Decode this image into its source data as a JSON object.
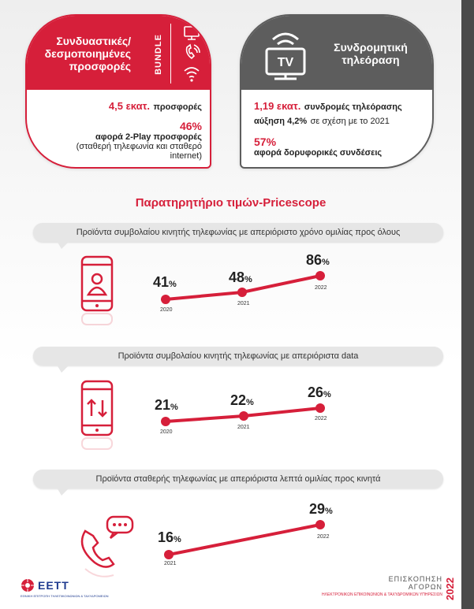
{
  "cards": {
    "bundle": {
      "title_line1": "Συνδυαστικές/",
      "title_line2": "δεσμοποιημένες",
      "title_line3": "προσφορές",
      "badge": "BUNDLE",
      "stat1_value": "4,5 εκατ.",
      "stat1_text": "προσφορές",
      "stat2_value": "46%",
      "stat2_bold": "αφορά 2-Play προσφορές",
      "stat2_note_line1": "(σταθερή τηλεφωνία και σταθερό",
      "stat2_note_line2": "internet)"
    },
    "tv": {
      "icon_label": "TV",
      "title_line1": "Συνδρομητική",
      "title_line2": "τηλεόραση",
      "stat1_value": "1,19 εκατ.",
      "stat1_bold": "συνδρομές τηλεόρασης",
      "stat1_increase": "αύξηση 4,2%",
      "stat1_tail": "σε σχέση με το 2021",
      "stat2_value": "57%",
      "stat2_bold": "αφορά δορυφορικές συνδέσεις"
    }
  },
  "section_title": "Παρατηρητήριο τιμών-Pricescope",
  "trends": [
    {
      "caption": "Προϊόντα συμβολαίου κινητής τηλεφωνίας με απεριόριστο χρόνο ομιλίας προς όλους",
      "icon": "phone-user-icon",
      "points": [
        {
          "value": "41",
          "unit": "%",
          "year": "2020"
        },
        {
          "value": "48",
          "unit": "%",
          "year": "2021"
        },
        {
          "value": "86",
          "unit": "%",
          "year": "2022"
        }
      ]
    },
    {
      "caption": "Προϊόντα συμβολαίου κινητής τηλεφωνίας με απεριόριστα data",
      "icon": "phone-data-icon",
      "points": [
        {
          "value": "21",
          "unit": "%",
          "year": "2020"
        },
        {
          "value": "22",
          "unit": "%",
          "year": "2021"
        },
        {
          "value": "26",
          "unit": "%",
          "year": "2022"
        }
      ]
    },
    {
      "caption": "Προϊόντα σταθερής τηλεφωνίας με απεριόριστα λεπτά ομιλίας προς κινητά",
      "icon": "landline-chat-icon",
      "points": [
        {
          "value": "16",
          "unit": "%",
          "year": "2021"
        },
        {
          "value": "29",
          "unit": "%",
          "year": "2022"
        }
      ]
    }
  ],
  "footer": {
    "logo": "ΕΕΤΤ",
    "logo_sub": "ΕΘΝΙΚΗ ΕΠΙΤΡΟΠΗ ΤΗΛΕΠΙΚΟΙΝΩΝΙΩΝ & ΤΑΧΥΔΡΟΜΕΙΩΝ",
    "line1": "ΕΠΙΣΚΟΠΗΣΗ",
    "line2": "ΑΓΟΡΩΝ",
    "line3": "ΗΛΕΚΤΡΟΝΙΚΩΝ ΕΠΙΚΟΙΝΩΝΙΩΝ & ΤΑΧΥΔΡΟΜΙΚΩΝ ΥΠΗΡΕΣΙΩΝ",
    "year": "2022"
  },
  "colors": {
    "accent": "#d61f3a",
    "grey": "#5d5d5d",
    "bubble": "#e6e6e6"
  }
}
